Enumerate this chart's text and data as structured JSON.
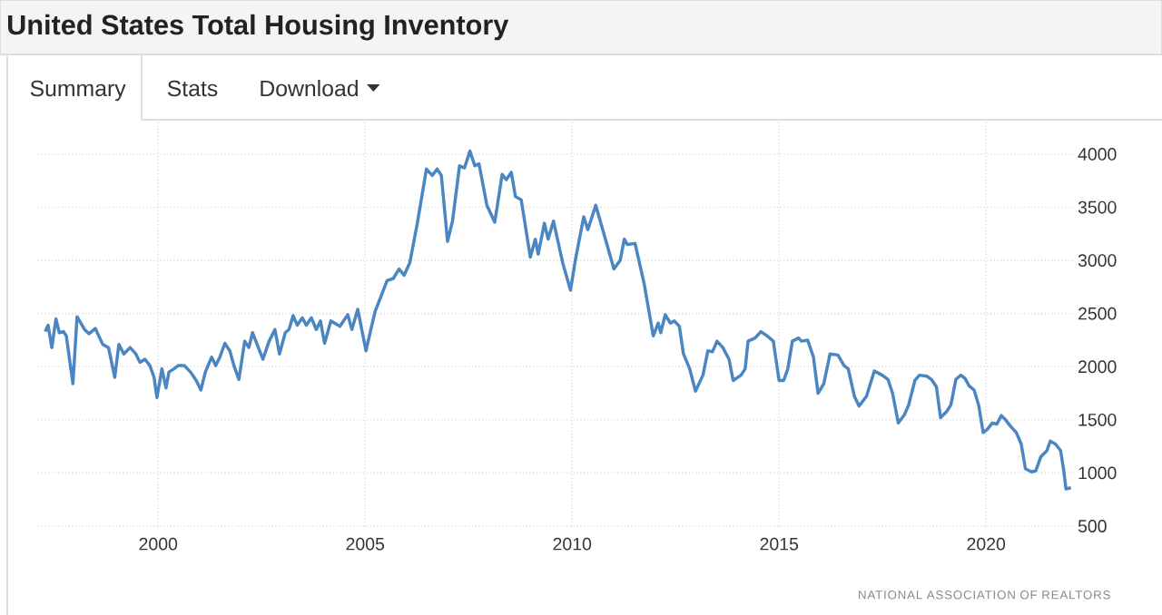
{
  "chart_data": {
    "type": "line",
    "title": "United States Total Housing Inventory",
    "annotations": [
      "Summary",
      "Stats",
      "Download",
      "NATIONAL ASSOCIATION OF REALTORS"
    ],
    "x": [
      1997.27,
      1997.34,
      1997.43,
      1997.53,
      1997.61,
      1997.71,
      1997.78,
      1997.94,
      1998.04,
      1998.22,
      1998.33,
      1998.48,
      1998.66,
      1998.8,
      1998.95,
      1999.05,
      1999.17,
      1999.32,
      1999.46,
      1999.56,
      1999.68,
      1999.8,
      1999.9,
      1999.97,
      2000.09,
      2000.19,
      2000.26,
      2000.38,
      2000.48,
      2000.63,
      2000.78,
      2000.92,
      2001.03,
      2001.14,
      2001.29,
      2001.39,
      2001.49,
      2001.61,
      2001.73,
      2001.83,
      2001.95,
      2002.09,
      2002.19,
      2002.28,
      2002.39,
      2002.53,
      2002.68,
      2002.82,
      2002.93,
      2003.07,
      2003.16,
      2003.26,
      2003.36,
      2003.48,
      2003.58,
      2003.7,
      2003.82,
      2003.92,
      2004.02,
      2004.17,
      2004.39,
      2004.58,
      2004.68,
      2004.82,
      2005.02,
      2005.12,
      2005.24,
      2005.53,
      2005.68,
      2005.82,
      2005.94,
      2006.08,
      2006.26,
      2006.48,
      2006.62,
      2006.74,
      2006.84,
      2006.99,
      2007.11,
      2007.28,
      2007.4,
      2007.53,
      2007.65,
      2007.75,
      2007.94,
      2008.13,
      2008.31,
      2008.41,
      2008.53,
      2008.63,
      2008.77,
      2008.99,
      2009.11,
      2009.18,
      2009.33,
      2009.42,
      2009.55,
      2009.77,
      2009.96,
      2010.09,
      2010.28,
      2010.38,
      2010.57,
      2011.01,
      2011.16,
      2011.26,
      2011.33,
      2011.52,
      2011.74,
      2011.96,
      2012.08,
      2012.14,
      2012.25,
      2012.37,
      2012.47,
      2012.59,
      2012.69,
      2012.84,
      2012.98,
      2013.16,
      2013.28,
      2013.39,
      2013.5,
      2013.64,
      2013.79,
      2013.89,
      2014.08,
      2014.18,
      2014.25,
      2014.42,
      2014.56,
      2014.71,
      2014.86,
      2015.0,
      2015.11,
      2015.21,
      2015.32,
      2015.47,
      2015.54,
      2015.69,
      2015.83,
      2015.94,
      2016.08,
      2016.23,
      2016.42,
      2016.57,
      2016.67,
      2016.82,
      2016.93,
      2017.11,
      2017.3,
      2017.49,
      2017.63,
      2017.74,
      2017.88,
      2018.03,
      2018.13,
      2018.28,
      2018.39,
      2018.57,
      2018.68,
      2018.8,
      2018.9,
      2019.05,
      2019.15,
      2019.27,
      2019.39,
      2019.49,
      2019.59,
      2019.71,
      2019.82,
      2019.93,
      2020.03,
      2020.15,
      2020.26,
      2020.37,
      2020.47,
      2020.59,
      2020.73,
      2020.85,
      2020.95,
      2021.1,
      2021.2,
      2021.32,
      2021.47,
      2021.55,
      2021.68,
      2021.8,
      2021.87,
      2021.93,
      2022.05
    ],
    "series": [
      {
        "color": "#4a86c1",
        "values": [
          2330,
          2390,
          2180,
          2450,
          2320,
          2330,
          2290,
          1840,
          2470,
          2350,
          2310,
          2360,
          2210,
          2180,
          1900,
          2210,
          2120,
          2180,
          2120,
          2040,
          2070,
          2010,
          1900,
          1710,
          1980,
          1800,
          1950,
          1980,
          2010,
          2010,
          1950,
          1870,
          1780,
          1950,
          2090,
          2010,
          2090,
          2220,
          2150,
          2010,
          1880,
          2240,
          2180,
          2320,
          2210,
          2070,
          2240,
          2350,
          2120,
          2320,
          2350,
          2480,
          2390,
          2460,
          2390,
          2460,
          2350,
          2430,
          2220,
          2430,
          2380,
          2490,
          2350,
          2540,
          2150,
          2320,
          2520,
          2810,
          2830,
          2920,
          2860,
          2980,
          3350,
          3860,
          3800,
          3860,
          3800,
          3180,
          3370,
          3890,
          3870,
          4030,
          3890,
          3910,
          3520,
          3360,
          3810,
          3760,
          3830,
          3600,
          3570,
          3030,
          3200,
          3060,
          3350,
          3200,
          3370,
          2980,
          2720,
          3030,
          3410,
          3290,
          3520,
          2920,
          3000,
          3200,
          3150,
          3160,
          2780,
          2290,
          2410,
          2320,
          2490,
          2410,
          2430,
          2380,
          2120,
          1980,
          1770,
          1920,
          2150,
          2140,
          2240,
          2180,
          2070,
          1870,
          1920,
          1980,
          2240,
          2270,
          2330,
          2290,
          2240,
          1870,
          1870,
          1980,
          2240,
          2270,
          2240,
          2250,
          2090,
          1750,
          1840,
          2120,
          2110,
          2010,
          1980,
          1720,
          1630,
          1720,
          1960,
          1920,
          1880,
          1750,
          1470,
          1550,
          1640,
          1870,
          1920,
          1910,
          1880,
          1810,
          1520,
          1580,
          1640,
          1880,
          1920,
          1890,
          1820,
          1780,
          1640,
          1380,
          1410,
          1470,
          1460,
          1540,
          1500,
          1440,
          1380,
          1270,
          1040,
          1010,
          1020,
          1150,
          1210,
          1300,
          1270,
          1210,
          1040,
          850,
          860
        ]
      }
    ],
    "xlim": [
      1997.1,
      2022.1
    ],
    "ylim": [
      500,
      4300
    ],
    "xticks": [
      2000,
      2005,
      2010,
      2015,
      2020
    ],
    "yticks": [
      500,
      1000,
      1500,
      2000,
      2500,
      3000,
      3500,
      4000
    ],
    "grid": true
  }
}
